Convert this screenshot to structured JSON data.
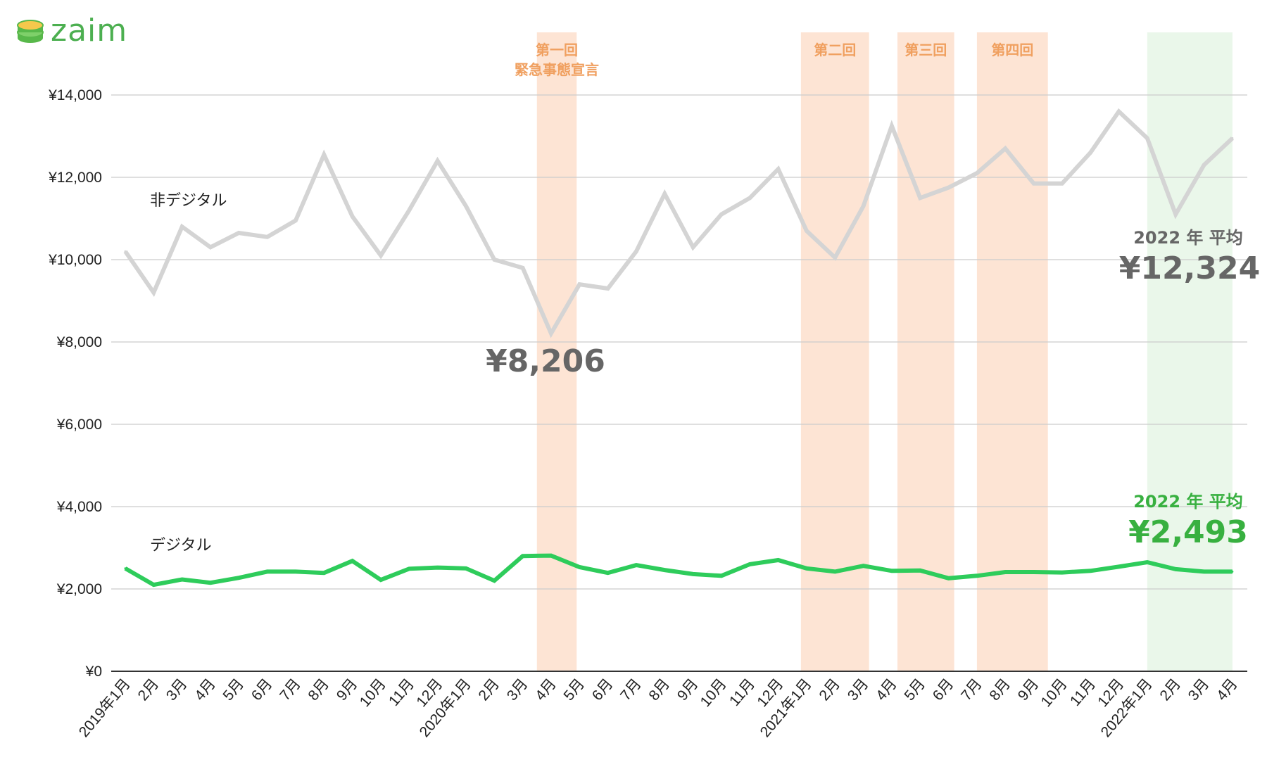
{
  "logo": {
    "text": "zaim",
    "icon": "coin-stack-icon"
  },
  "colors": {
    "non_digital": "#d4d4d4",
    "digital": "#2ecc5b",
    "band": "#fde4d4",
    "highlight_band": "#eaf7ea",
    "band_text": "#f0a060",
    "avg_gray": "#666666",
    "avg_green": "#38b040",
    "grid": "#cccccc"
  },
  "chart_data": {
    "type": "line",
    "categories": [
      "2019年1月",
      "2月",
      "3月",
      "4月",
      "5月",
      "6月",
      "7月",
      "8月",
      "9月",
      "10月",
      "11月",
      "12月",
      "2020年1月",
      "2月",
      "3月",
      "4月",
      "5月",
      "6月",
      "7月",
      "8月",
      "9月",
      "10月",
      "11月",
      "12月",
      "2021年1月",
      "2月",
      "3月",
      "4月",
      "5月",
      "6月",
      "7月",
      "8月",
      "9月",
      "10月",
      "11月",
      "12月",
      "2022年1月",
      "2月",
      "3月",
      "4月"
    ],
    "series": [
      {
        "name": "非デジタル",
        "key": "non_digital",
        "values": [
          10200,
          9200,
          10800,
          10300,
          10650,
          10550,
          10950,
          12550,
          11050,
          10100,
          11200,
          12400,
          11300,
          10000,
          9800,
          8206,
          9400,
          9300,
          10200,
          11600,
          10300,
          11100,
          11500,
          12200,
          10700,
          10050,
          11300,
          13250,
          11500,
          11750,
          12100,
          12700,
          11850,
          11850,
          12600,
          13600,
          12950,
          11100,
          12300,
          12950
        ]
      },
      {
        "name": "デジタル",
        "key": "digital",
        "values": [
          2500,
          2100,
          2230,
          2150,
          2270,
          2420,
          2420,
          2390,
          2680,
          2220,
          2490,
          2520,
          2500,
          2200,
          2800,
          2810,
          2530,
          2390,
          2580,
          2460,
          2360,
          2320,
          2600,
          2700,
          2500,
          2420,
          2560,
          2440,
          2450,
          2260,
          2320,
          2410,
          2410,
          2400,
          2440,
          2540,
          2650,
          2480,
          2420,
          2420
        ]
      }
    ],
    "ylim": [
      0,
      14000
    ],
    "yticks": [
      "¥0",
      "¥2,000",
      "¥4,000",
      "¥6,000",
      "¥8,000",
      "¥10,000",
      "¥12,000",
      "¥14,000"
    ],
    "ytick_values": [
      0,
      2000,
      4000,
      6000,
      8000,
      10000,
      12000,
      14000
    ],
    "grid": true,
    "bands": [
      {
        "label_lines": [
          "第一回",
          "緊急事態宣言"
        ],
        "from_index": 14.5,
        "to_index": 15.9,
        "kind": "emergency"
      },
      {
        "label_lines": [
          "第二回"
        ],
        "from_index": 23.8,
        "to_index": 26.2,
        "kind": "emergency"
      },
      {
        "label_lines": [
          "第三回"
        ],
        "from_index": 27.2,
        "to_index": 29.2,
        "kind": "emergency"
      },
      {
        "label_lines": [
          "第四回"
        ],
        "from_index": 30.0,
        "to_index": 32.5,
        "kind": "emergency"
      },
      {
        "label_lines": [],
        "from_index": 36.0,
        "to_index": 39.0,
        "kind": "highlight"
      }
    ],
    "annotations": {
      "min_value": "¥8,206",
      "non_digital_avg_caption": "2022 年 平均",
      "non_digital_avg_value": "¥12,324",
      "digital_avg_caption": "2022 年 平均",
      "digital_avg_value": "¥2,493"
    }
  }
}
